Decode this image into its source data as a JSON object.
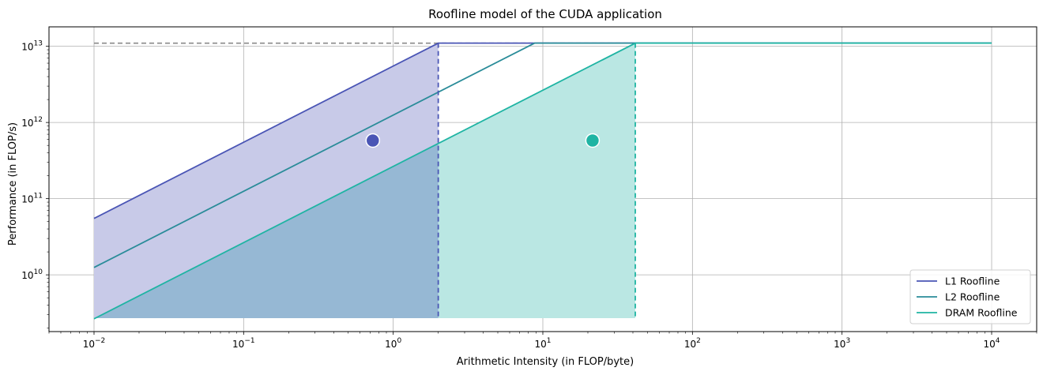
{
  "chart_data": {
    "type": "line",
    "title": "Roofline model of the CUDA application",
    "xlabel": "Arithmetic Intensity (in FLOP/byte)",
    "ylabel": "Performance (in FLOP/s)",
    "xscale": "log",
    "yscale": "log",
    "xlim": [
      0.005,
      20000
    ],
    "ylim": [
      1800000000.0,
      18000000000000.0
    ],
    "xticks": [
      0.01,
      0.1,
      1,
      10,
      100,
      1000,
      10000
    ],
    "xtick_labels": [
      [
        "10",
        "−2"
      ],
      [
        "10",
        "−1"
      ],
      [
        "10",
        "0"
      ],
      [
        "10",
        "1"
      ],
      [
        "10",
        "2"
      ],
      [
        "10",
        "3"
      ],
      [
        "10",
        "4"
      ]
    ],
    "yticks": [
      10000000000.0,
      100000000000.0,
      1000000000000.0,
      10000000000000.0
    ],
    "ytick_labels": [
      [
        "10",
        "10"
      ],
      [
        "10",
        "11"
      ],
      [
        "10",
        "12"
      ],
      [
        "10",
        "13"
      ]
    ],
    "grid": true,
    "legend_position": "lower-right",
    "peak_performance": 11000000000000.0,
    "peak_line_x": [
      0.01,
      41.5
    ],
    "floor_performance": 2700000000.0,
    "series": [
      {
        "name": "L1 Roofline",
        "color": "#4a55b5",
        "bandwidth": 5500000000000.0,
        "x": [
          0.01,
          2.0,
          10000
        ],
        "y": [
          55000000000.0,
          11000000000000.0,
          11000000000000.0
        ],
        "ridge": 2.0,
        "fill": "#c8cae8",
        "point": {
          "x": 0.73,
          "y": 580000000000.0
        }
      },
      {
        "name": "L2 Roofline",
        "color": "#2a8c99",
        "bandwidth": 1250000000000.0,
        "x": [
          0.01,
          8.8,
          10000
        ],
        "y": [
          12500000000.0,
          11000000000000.0,
          11000000000000.0
        ],
        "ridge": 8.8
      },
      {
        "name": "DRAM Roofline",
        "color": "#1fb4a3",
        "bandwidth": 265000000000.0,
        "x": [
          0.01,
          41.5,
          10000
        ],
        "y": [
          2650000000.0,
          11000000000000.0,
          11000000000000.0
        ],
        "ridge": 41.5,
        "fill": "#bae7e3",
        "point": {
          "x": 21.5,
          "y": 580000000000.0
        }
      }
    ],
    "overlap_fill": "#96b8d4",
    "peak_line_color": "#8a8a8a"
  }
}
